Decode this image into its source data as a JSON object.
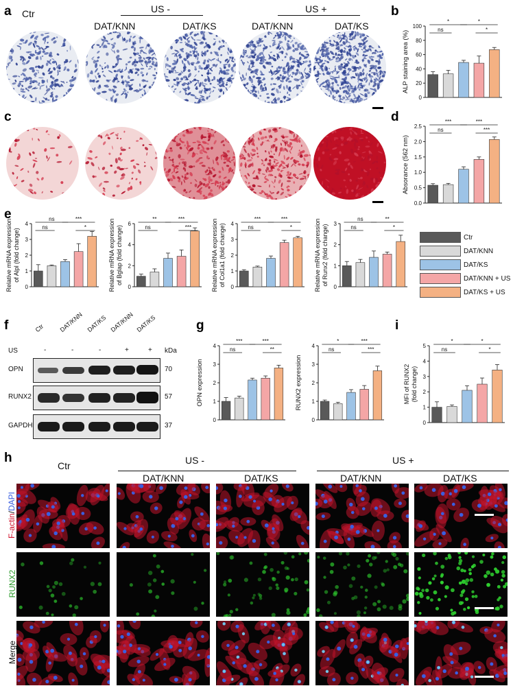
{
  "panels": {
    "a": "a",
    "b": "b",
    "c": "c",
    "d": "d",
    "e": "e",
    "f": "f",
    "g": "g",
    "h": "h",
    "i": "i"
  },
  "groups": {
    "ctr": "Ctr",
    "us_minus": "US -",
    "us_plus": "US +",
    "dat_knn": "DAT/KNN",
    "dat_ks": "DAT/KS"
  },
  "blot": {
    "lanes": [
      "Ctr",
      "DAT/KNN",
      "DAT/KS",
      "DAT/KNN",
      "DAT/KS"
    ],
    "us_label": "US",
    "us_signs": [
      "-",
      "-",
      "-",
      "+",
      "+"
    ],
    "kda": "kDa",
    "rows": [
      {
        "name": "OPN",
        "kda": "70"
      },
      {
        "name": "RUNX2",
        "kda": "57"
      },
      {
        "name": "GAPDH",
        "kda": "37"
      }
    ]
  },
  "micro_rows": {
    "factin": "F-actin",
    "dapi": "DAPI",
    "slash": "/",
    "runx2": "RUNX2",
    "merge": "Merge"
  },
  "legend": {
    "items": [
      {
        "label": "Ctr",
        "color": "#595959"
      },
      {
        "label": "DAT/KNN",
        "color": "#d9d9d9"
      },
      {
        "label": "DAT/KS",
        "color": "#9dc3e6"
      },
      {
        "label": "DAT/KNN + US",
        "color": "#f4a6a6"
      },
      {
        "label": "DAT/KS + US",
        "color": "#f4b183"
      }
    ]
  },
  "colors": {
    "ctr": "#595959",
    "dat_knn": "#d9d9d9",
    "dat_ks": "#9dc3e6",
    "dat_knn_us": "#f4a6a6",
    "dat_ks_us": "#f4b183",
    "alp_stain": "#2c3f8f",
    "ars_stain": "#c4142a",
    "factin": "#d0102a",
    "dapi": "#3a5fe0",
    "runx2": "#2fd02f"
  },
  "chart_data": [
    {
      "id": "b",
      "type": "bar",
      "categories": [
        "Ctr",
        "DAT/KNN",
        "DAT/KS",
        "DAT/KNN + US",
        "DAT/KS + US"
      ],
      "values": [
        32,
        33,
        49,
        48,
        67
      ],
      "errors": [
        4,
        5,
        3,
        10,
        3
      ],
      "ylabel": "ALP staining area (%)",
      "ylim": [
        0,
        100
      ],
      "yticks": [
        0,
        20,
        40,
        60,
        80,
        100
      ],
      "sig": [
        {
          "from": 0,
          "to": 1,
          "label": "ns",
          "level": 0
        },
        {
          "from": 0,
          "to": 2,
          "label": "*",
          "level": 1
        },
        {
          "from": 2,
          "to": 4,
          "label": "*",
          "level": 1
        },
        {
          "from": 3,
          "to": 4,
          "label": "*",
          "level": 0
        }
      ]
    },
    {
      "id": "d",
      "type": "bar",
      "categories": [
        "Ctr",
        "DAT/KNN",
        "DAT/KS",
        "DAT/KNN + US",
        "DAT/KS + US"
      ],
      "values": [
        0.58,
        0.6,
        1.1,
        1.42,
        2.07
      ],
      "errors": [
        0.05,
        0.04,
        0.08,
        0.08,
        0.08
      ],
      "ylabel": "Absorance (562 nm)",
      "ylim": [
        0,
        2.5
      ],
      "yticks": [
        0,
        0.5,
        1,
        1.5,
        2,
        2.5
      ],
      "ytick_labels": [
        "0.0",
        "0.5",
        "1.0",
        "1.5",
        "2.0",
        "2.5"
      ],
      "sig": [
        {
          "from": 0,
          "to": 1,
          "label": "ns",
          "level": 0
        },
        {
          "from": 0,
          "to": 2,
          "label": "***",
          "level": 1
        },
        {
          "from": 2,
          "to": 4,
          "label": "***",
          "level": 1
        },
        {
          "from": 3,
          "to": 4,
          "label": "***",
          "level": 0
        }
      ]
    },
    {
      "id": "e1",
      "type": "bar",
      "categories": [
        "Ctr",
        "DAT/KNN",
        "DAT/KS",
        "DAT/KNN + US",
        "DAT/KS + US"
      ],
      "values": [
        1.0,
        1.33,
        1.6,
        2.23,
        3.2
      ],
      "errors": [
        0.4,
        0.05,
        0.12,
        0.5,
        0.3
      ],
      "ylabel_lines": [
        "Relative mRNA expression",
        "of Alpl (fold change)"
      ],
      "ylim": [
        0,
        4
      ],
      "yticks": [
        0,
        1,
        2,
        3,
        4
      ],
      "sig": [
        {
          "from": 0,
          "to": 1,
          "label": "ns",
          "level": 0
        },
        {
          "from": 0,
          "to": 2,
          "label": "ns",
          "level": 1
        },
        {
          "from": 2,
          "to": 4,
          "label": "***",
          "level": 1
        },
        {
          "from": 3,
          "to": 4,
          "label": "*",
          "level": 0
        }
      ]
    },
    {
      "id": "e2",
      "type": "bar",
      "categories": [
        "Ctr",
        "DAT/KNN",
        "DAT/KS",
        "DAT/KNN + US",
        "DAT/KS + US"
      ],
      "values": [
        1.0,
        1.4,
        2.7,
        2.9,
        5.3
      ],
      "errors": [
        0.2,
        0.3,
        0.5,
        0.6,
        0.3
      ],
      "ylabel_lines": [
        "Relative mRNA expression",
        "of Bglap (fold change)"
      ],
      "ylim": [
        0,
        6
      ],
      "yticks": [
        0,
        2,
        4,
        6
      ],
      "sig": [
        {
          "from": 0,
          "to": 1,
          "label": "ns",
          "level": 0
        },
        {
          "from": 0,
          "to": 2,
          "label": "**",
          "level": 1
        },
        {
          "from": 2,
          "to": 4,
          "label": "***",
          "level": 1
        },
        {
          "from": 3,
          "to": 4,
          "label": "***",
          "level": 0
        }
      ]
    },
    {
      "id": "e3",
      "type": "bar",
      "categories": [
        "Ctr",
        "DAT/KNN",
        "DAT/KS",
        "DAT/KNN + US",
        "DAT/KS + US"
      ],
      "values": [
        1.0,
        1.25,
        1.8,
        2.8,
        3.1
      ],
      "errors": [
        0.08,
        0.06,
        0.15,
        0.15,
        0.1
      ],
      "ylabel_lines": [
        "Relative mRNA expression",
        "of Col1a1 (fold change)"
      ],
      "ylim": [
        0,
        4
      ],
      "yticks": [
        0,
        1,
        2,
        3,
        4
      ],
      "sig": [
        {
          "from": 0,
          "to": 1,
          "label": "ns",
          "level": 0
        },
        {
          "from": 0,
          "to": 2,
          "label": "***",
          "level": 1
        },
        {
          "from": 2,
          "to": 4,
          "label": "***",
          "level": 1
        },
        {
          "from": 3,
          "to": 4,
          "label": "*",
          "level": 0
        }
      ]
    },
    {
      "id": "e4",
      "type": "bar",
      "categories": [
        "Ctr",
        "DAT/KNN",
        "DAT/KS",
        "DAT/KNN + US",
        "DAT/KS + US"
      ],
      "values": [
        1.0,
        1.15,
        1.4,
        1.55,
        2.15
      ],
      "errors": [
        0.2,
        0.15,
        0.3,
        0.1,
        0.3
      ],
      "ylabel_lines": [
        "Relative mRNA expression",
        "of Runx2 (fold change)"
      ],
      "ylim": [
        0,
        3
      ],
      "yticks": [
        0,
        1,
        2,
        3
      ],
      "sig": [
        {
          "from": 0,
          "to": 1,
          "label": "ns",
          "level": 0
        },
        {
          "from": 0,
          "to": 2,
          "label": "ns",
          "level": 1
        },
        {
          "from": 2,
          "to": 4,
          "label": "**",
          "level": 1
        },
        {
          "from": 3,
          "to": 4,
          "label": "*",
          "level": 0
        }
      ]
    },
    {
      "id": "g1",
      "type": "bar",
      "categories": [
        "Ctr",
        "DAT/KNN",
        "DAT/KS",
        "DAT/KNN + US",
        "DAT/KS + US"
      ],
      "values": [
        1.0,
        1.18,
        2.15,
        2.25,
        2.8
      ],
      "errors": [
        0.2,
        0.1,
        0.1,
        0.12,
        0.15
      ],
      "ylabel": "OPN expression",
      "ylim": [
        0,
        4
      ],
      "yticks": [
        0,
        1,
        2,
        3,
        4
      ],
      "sig": [
        {
          "from": 0,
          "to": 1,
          "label": "ns",
          "level": 0
        },
        {
          "from": 0,
          "to": 2,
          "label": "***",
          "level": 1
        },
        {
          "from": 2,
          "to": 4,
          "label": "***",
          "level": 1
        },
        {
          "from": 3,
          "to": 4,
          "label": "**",
          "level": 0
        }
      ]
    },
    {
      "id": "g2",
      "type": "bar",
      "categories": [
        "Ctr",
        "DAT/KNN",
        "DAT/KS",
        "DAT/KNN + US",
        "DAT/KS + US"
      ],
      "values": [
        1.0,
        0.87,
        1.48,
        1.65,
        2.65
      ],
      "errors": [
        0.07,
        0.08,
        0.15,
        0.2,
        0.25
      ],
      "ylabel": "RUNX2 expression",
      "ylim": [
        0,
        4
      ],
      "yticks": [
        0,
        1,
        2,
        3,
        4
      ],
      "sig": [
        {
          "from": 0,
          "to": 1,
          "label": "ns",
          "level": 0
        },
        {
          "from": 0,
          "to": 2,
          "label": "*",
          "level": 1
        },
        {
          "from": 2,
          "to": 4,
          "label": "***",
          "level": 1
        },
        {
          "from": 3,
          "to": 4,
          "label": "***",
          "level": 0
        }
      ]
    },
    {
      "id": "i",
      "type": "bar",
      "categories": [
        "Ctr",
        "DAT/KNN",
        "DAT/KS",
        "DAT/KNN + US",
        "DAT/KS + US"
      ],
      "values": [
        1.0,
        1.05,
        2.1,
        2.5,
        3.42
      ],
      "errors": [
        0.35,
        0.1,
        0.3,
        0.4,
        0.35
      ],
      "ylabel_lines": [
        "MFI of RUNX2",
        "(fold change)"
      ],
      "ylim": [
        0,
        5
      ],
      "yticks": [
        0,
        1,
        2,
        3,
        4,
        5
      ],
      "sig": [
        {
          "from": 0,
          "to": 1,
          "label": "ns",
          "level": 0
        },
        {
          "from": 0,
          "to": 2,
          "label": "*",
          "level": 1
        },
        {
          "from": 2,
          "to": 4,
          "label": "*",
          "level": 1
        },
        {
          "from": 3,
          "to": 4,
          "label": "*",
          "level": 0
        }
      ]
    }
  ]
}
